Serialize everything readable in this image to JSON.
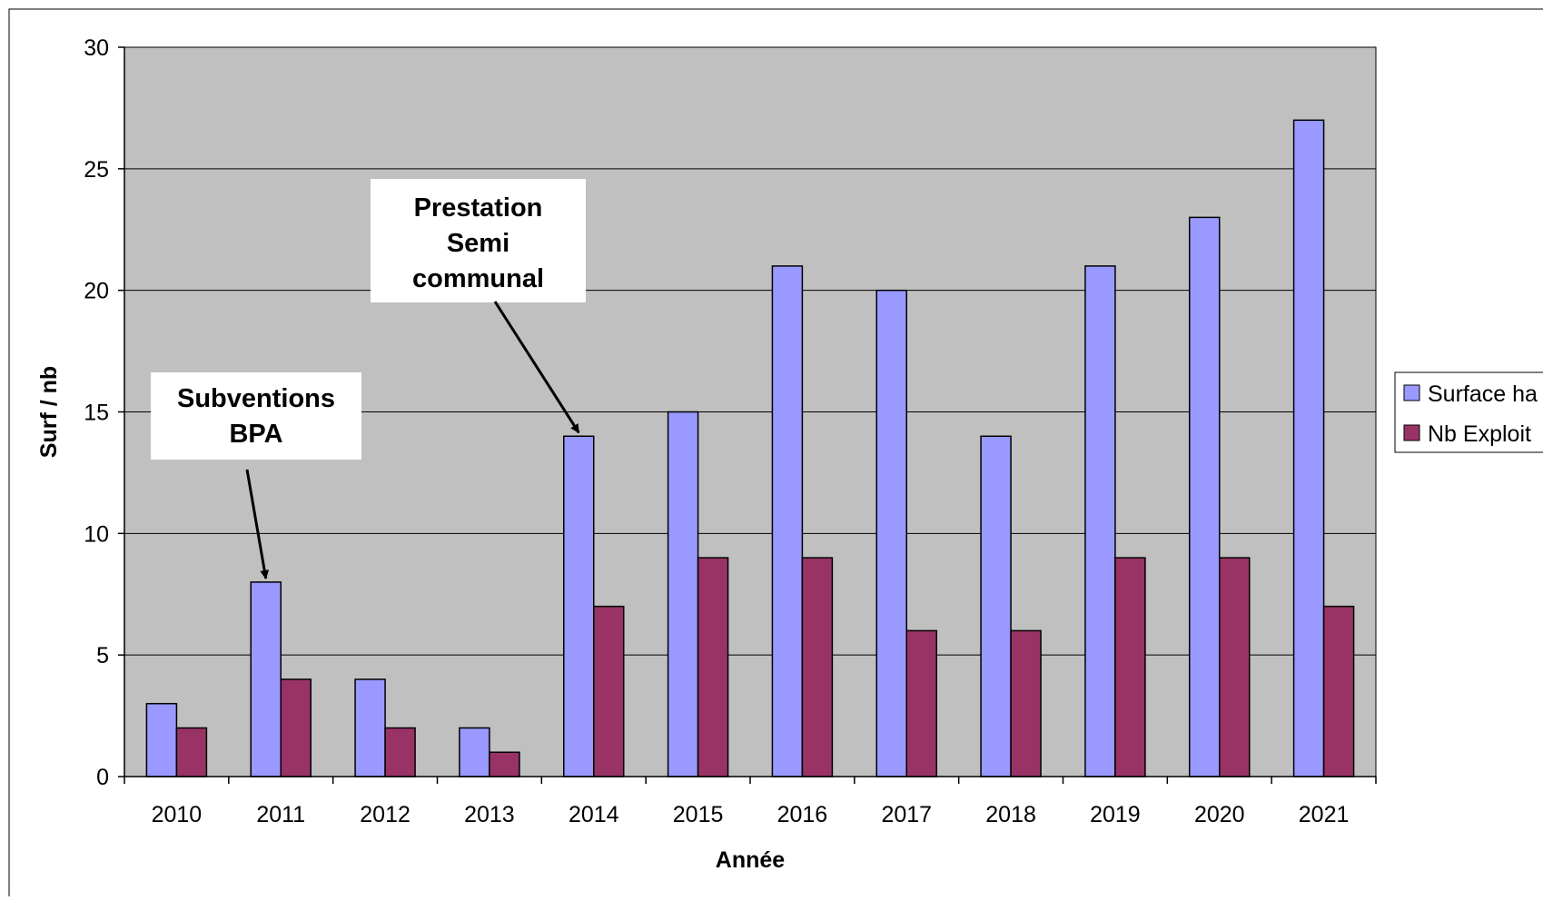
{
  "colors": {
    "plot_bg": "#c0c0c0",
    "frame": "#000000",
    "surface_fill": "#9999ff",
    "exploit_fill": "#993366",
    "annotation_bg": "#ffffff"
  },
  "chart_data": {
    "type": "bar",
    "title": "",
    "xlabel": "Année",
    "ylabel": "Surf / nb",
    "ylim": [
      0,
      30
    ],
    "yticks": [
      0,
      5,
      10,
      15,
      20,
      25,
      30
    ],
    "grid": true,
    "legend_position": "right",
    "categories": [
      "2010",
      "2011",
      "2012",
      "2013",
      "2014",
      "2015",
      "2016",
      "2017",
      "2018",
      "2019",
      "2020",
      "2021"
    ],
    "series": [
      {
        "name": "Surface ha",
        "values": [
          3,
          8,
          4,
          2,
          14,
          15,
          21,
          20,
          14,
          21,
          23,
          27
        ]
      },
      {
        "name": "Nb Exploit",
        "values": [
          2,
          4,
          2,
          1,
          7,
          9,
          9,
          6,
          6,
          9,
          9,
          7
        ]
      }
    ],
    "annotations": [
      {
        "lines": [
          "Subventions",
          "BPA"
        ],
        "points_to": {
          "category": "2011",
          "value": 8
        }
      },
      {
        "lines": [
          "Prestation",
          "Semi",
          "communal"
        ],
        "points_to": {
          "category": "2014",
          "value": 14
        }
      }
    ]
  }
}
